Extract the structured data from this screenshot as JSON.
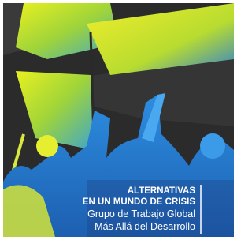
{
  "cover": {
    "title_lines": [
      "ALTERNATIVAS",
      "EN UN MUNDO DE CRISIS"
    ],
    "subtitle_lines": [
      "Grupo de Trabajo Global",
      "Más Allá del Desarrollo"
    ]
  }
}
